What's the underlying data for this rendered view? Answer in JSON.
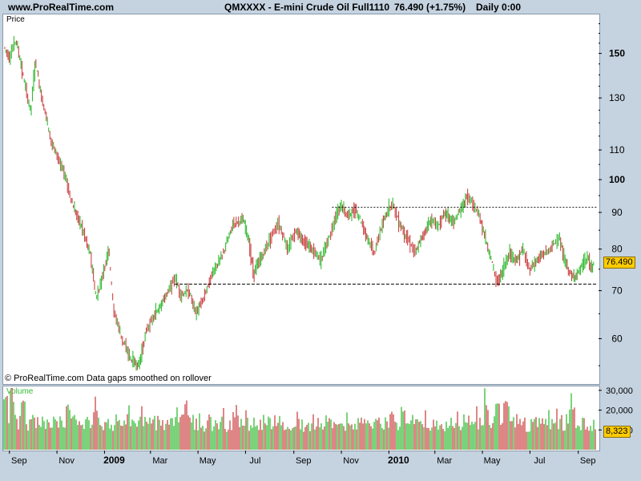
{
  "header": {
    "site": "www.ProRealTime.com",
    "instrument": "QMXXXX - E-mini Crude Oil Full1110",
    "last": "76.490 (+1.75%)",
    "period": "Daily  0:00"
  },
  "price_panel": {
    "title": "Price",
    "footer": "© ProRealTime.com  Data gaps smoothed on rollover",
    "last_badge": "76.490"
  },
  "volume_panel": {
    "title": "Volume",
    "last_badge": "8,323"
  },
  "colors": {
    "up": "#33bb33",
    "down": "#cc4444",
    "badge": "#ffcc00",
    "grid": "#ccd6e0"
  },
  "chart_data": [
    {
      "type": "candlestick",
      "title": "Price",
      "scale": "log",
      "ylim": [
        52,
        170
      ],
      "y_ticks": [
        60,
        70,
        80,
        90,
        100,
        110,
        130,
        150
      ],
      "x_ticks": [
        "Sep",
        "Nov",
        "2009",
        "Mar",
        "May",
        "Jul",
        "Sep",
        "Nov",
        "2010",
        "Mar",
        "May",
        "Jul",
        "Sep"
      ],
      "bold_x_ticks": [
        "2009",
        "2010"
      ],
      "path_points": [
        [
          "2008-08-26",
          153
        ],
        [
          "2008-09-02",
          148
        ],
        [
          "2008-09-10",
          157
        ],
        [
          "2008-09-20",
          138
        ],
        [
          "2008-09-29",
          124
        ],
        [
          "2008-10-05",
          146
        ],
        [
          "2008-10-12",
          132
        ],
        [
          "2008-10-26",
          112
        ],
        [
          "2008-11-10",
          103
        ],
        [
          "2008-11-22",
          92
        ],
        [
          "2008-12-05",
          85
        ],
        [
          "2008-12-15",
          78
        ],
        [
          "2008-12-22",
          68
        ],
        [
          "2008-12-31",
          74
        ],
        [
          "2009-01-07",
          80
        ],
        [
          "2009-01-13",
          66
        ],
        [
          "2009-01-24",
          60
        ],
        [
          "2009-02-05",
          56
        ],
        [
          "2009-02-15",
          55
        ],
        [
          "2009-02-25",
          62
        ],
        [
          "2009-03-05",
          64
        ],
        [
          "2009-03-15",
          67
        ],
        [
          "2009-03-25",
          70
        ],
        [
          "2009-04-02",
          73
        ],
        [
          "2009-04-10",
          69
        ],
        [
          "2009-04-20",
          70
        ],
        [
          "2009-04-29",
          65
        ],
        [
          "2009-05-08",
          68
        ],
        [
          "2009-05-20",
          74
        ],
        [
          "2009-06-01",
          78
        ],
        [
          "2009-06-10",
          83
        ],
        [
          "2009-06-16",
          87
        ],
        [
          "2009-06-28",
          88
        ],
        [
          "2009-07-05",
          83
        ],
        [
          "2009-07-12",
          74
        ],
        [
          "2009-07-25",
          79
        ],
        [
          "2009-08-05",
          84
        ],
        [
          "2009-08-13",
          87
        ],
        [
          "2009-08-25",
          80
        ],
        [
          "2009-09-05",
          85
        ],
        [
          "2009-09-15",
          82
        ],
        [
          "2009-09-25",
          80
        ],
        [
          "2009-10-06",
          77
        ],
        [
          "2009-10-15",
          82
        ],
        [
          "2009-10-23",
          87
        ],
        [
          "2009-11-01",
          92
        ],
        [
          "2009-11-10",
          89
        ],
        [
          "2009-11-20",
          91
        ],
        [
          "2009-11-28",
          87
        ],
        [
          "2009-12-05",
          83
        ],
        [
          "2009-12-14",
          79
        ],
        [
          "2009-12-22",
          85
        ],
        [
          "2010-01-01",
          91
        ],
        [
          "2010-01-06",
          93
        ],
        [
          "2010-01-15",
          87
        ],
        [
          "2010-01-25",
          83
        ],
        [
          "2010-02-05",
          79
        ],
        [
          "2010-02-15",
          84
        ],
        [
          "2010-02-25",
          88
        ],
        [
          "2010-03-05",
          86
        ],
        [
          "2010-03-15",
          90
        ],
        [
          "2010-03-25",
          87
        ],
        [
          "2010-04-05",
          91
        ],
        [
          "2010-04-12",
          95
        ],
        [
          "2010-04-20",
          92
        ],
        [
          "2010-04-28",
          89
        ],
        [
          "2010-05-05",
          83
        ],
        [
          "2010-05-12",
          78
        ],
        [
          "2010-05-20",
          72
        ],
        [
          "2010-05-27",
          74
        ],
        [
          "2010-06-05",
          79
        ],
        [
          "2010-06-15",
          77
        ],
        [
          "2010-06-22",
          80
        ],
        [
          "2010-07-01",
          75
        ],
        [
          "2010-07-10",
          77
        ],
        [
          "2010-07-20",
          79
        ],
        [
          "2010-07-28",
          80
        ],
        [
          "2010-08-03",
          82
        ],
        [
          "2010-08-08",
          83
        ],
        [
          "2010-08-15",
          77
        ],
        [
          "2010-08-25",
          73
        ],
        [
          "2010-09-01",
          74
        ],
        [
          "2010-09-08",
          76
        ],
        [
          "2010-09-14",
          78
        ],
        [
          "2010-09-18",
          75
        ],
        [
          "2010-09-22",
          76.49
        ]
      ],
      "reference_lines": [
        {
          "from": "2009-04-01",
          "to": "2010-09-30",
          "value": 71.5,
          "style": "dashed"
        },
        {
          "from": "2009-10-20",
          "to": "2010-09-30",
          "value": 91.5,
          "style": "dotted"
        }
      ],
      "last_value": 76.49
    },
    {
      "type": "bar",
      "title": "Volume",
      "ylim": [
        0,
        32000
      ],
      "y_ticks": [
        10000,
        20000,
        30000
      ],
      "y_tick_labels": [
        "10,000",
        "20,000",
        "30,000"
      ],
      "typical_range": [
        9000,
        18000
      ],
      "peaks": [
        [
          "2008-08-28",
          28000
        ],
        [
          "2008-09-05",
          26000
        ],
        [
          "2008-09-18",
          25000
        ],
        [
          "2008-11-15",
          23000
        ],
        [
          "2008-12-20",
          21000
        ],
        [
          "2009-04-15",
          20000
        ],
        [
          "2010-01-05",
          21000
        ],
        [
          "2010-01-20",
          22000
        ],
        [
          "2010-05-06",
          23000
        ],
        [
          "2010-05-20",
          24000
        ],
        [
          "2010-06-01",
          25000
        ],
        [
          "2010-08-25",
          22000
        ]
      ],
      "last_value": 8323
    }
  ]
}
